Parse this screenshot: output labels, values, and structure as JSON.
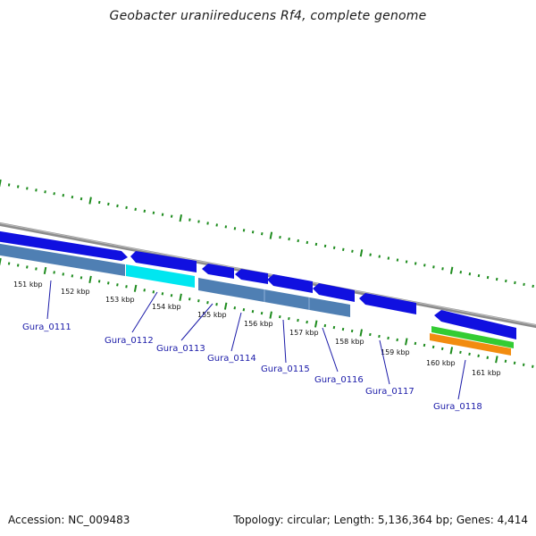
{
  "title": "Geobacter uraniireducens Rf4, complete genome",
  "footer": {
    "accession": "Accession: NC_009483",
    "summary": "Topology: circular; Length: 5,136,364 bp; Genes: 4,414"
  },
  "colors": {
    "backbone": "#8c8c8c",
    "tick": "#1e8c1e",
    "feature_blue": "#1010e0",
    "feature_cyan": "#00e6f0",
    "feature_steel": "#4f7fb3",
    "feature_green": "#33cc33",
    "feature_orange": "#f28c0f",
    "label": "#1a1aa8"
  },
  "kbp_labels": [
    "151 kbp",
    "152 kbp",
    "153 kbp",
    "154 kbp",
    "155 kbp",
    "156 kbp",
    "157 kbp",
    "158 kbp",
    "159 kbp",
    "160 kbp",
    "161 kbp"
  ],
  "genes": [
    "Gura_0111",
    "Gura_0112",
    "Gura_0113",
    "Gura_0114",
    "Gura_0115",
    "Gura_0116",
    "Gura_0117",
    "Gura_0118"
  ]
}
